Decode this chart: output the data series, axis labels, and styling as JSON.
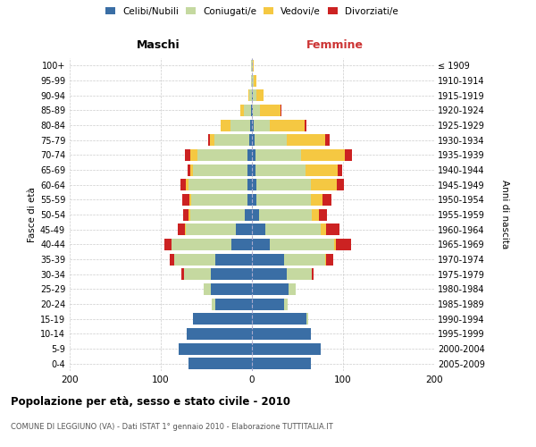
{
  "age_groups": [
    "0-4",
    "5-9",
    "10-14",
    "15-19",
    "20-24",
    "25-29",
    "30-34",
    "35-39",
    "40-44",
    "45-49",
    "50-54",
    "55-59",
    "60-64",
    "65-69",
    "70-74",
    "75-79",
    "80-84",
    "85-89",
    "90-94",
    "95-99",
    "100+"
  ],
  "birth_years": [
    "2005-2009",
    "2000-2004",
    "1995-1999",
    "1990-1994",
    "1985-1989",
    "1980-1984",
    "1975-1979",
    "1970-1974",
    "1965-1969",
    "1960-1964",
    "1955-1959",
    "1950-1954",
    "1945-1949",
    "1940-1944",
    "1935-1939",
    "1930-1934",
    "1925-1929",
    "1920-1924",
    "1915-1919",
    "1910-1914",
    "≤ 1909"
  ],
  "male": {
    "celibi": [
      70,
      80,
      72,
      65,
      40,
      45,
      45,
      40,
      23,
      18,
      8,
      5,
      5,
      5,
      5,
      3,
      2,
      1,
      0,
      0,
      0
    ],
    "coniugati": [
      0,
      0,
      0,
      0,
      4,
      8,
      30,
      45,
      65,
      55,
      60,
      62,
      65,
      60,
      55,
      38,
      22,
      8,
      3,
      1,
      1
    ],
    "vedovi": [
      0,
      0,
      0,
      0,
      0,
      0,
      0,
      0,
      0,
      1,
      2,
      2,
      3,
      3,
      8,
      5,
      10,
      4,
      1,
      0,
      0
    ],
    "divorziati": [
      0,
      0,
      0,
      0,
      0,
      0,
      2,
      5,
      8,
      7,
      5,
      7,
      5,
      3,
      6,
      2,
      0,
      0,
      0,
      0,
      0
    ]
  },
  "female": {
    "nubili": [
      65,
      75,
      65,
      60,
      35,
      40,
      38,
      35,
      20,
      15,
      8,
      5,
      5,
      4,
      4,
      3,
      2,
      1,
      1,
      0,
      0
    ],
    "coniugate": [
      0,
      0,
      0,
      2,
      4,
      8,
      28,
      45,
      70,
      60,
      58,
      60,
      60,
      55,
      50,
      35,
      18,
      8,
      4,
      2,
      1
    ],
    "vedove": [
      0,
      0,
      0,
      0,
      0,
      0,
      0,
      1,
      2,
      6,
      8,
      12,
      28,
      35,
      48,
      42,
      38,
      22,
      8,
      3,
      1
    ],
    "divorziate": [
      0,
      0,
      0,
      0,
      0,
      0,
      2,
      8,
      17,
      15,
      8,
      10,
      8,
      5,
      8,
      5,
      2,
      1,
      0,
      0,
      0
    ]
  },
  "colors": {
    "celibi": "#3a6ea5",
    "coniugati": "#c5d9a0",
    "vedovi": "#f5c842",
    "divorziati": "#cc2222"
  },
  "xlim": 200,
  "title": "Popolazione per età, sesso e stato civile - 2010",
  "subtitle": "COMUNE DI LEGGIUNO (VA) - Dati ISTAT 1° gennaio 2010 - Elaborazione TUTTITALIA.IT",
  "ylabel_left": "Fasce di età",
  "ylabel_right": "Anni di nascita",
  "xlabel_left": "Maschi",
  "xlabel_right": "Femmine"
}
